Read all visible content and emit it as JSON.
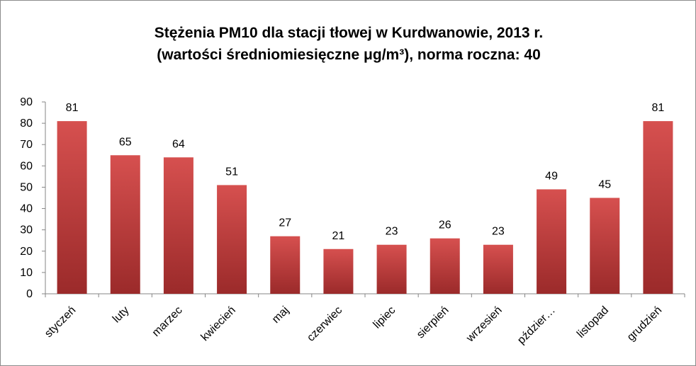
{
  "chart_data": {
    "type": "bar",
    "title_line1": "Stężenia PM10 dla stacji tłowej w Kurdwanowie, 2013 r.",
    "title_line2": "(wartości średniomiesięczne μg/m³), norma roczna: 40",
    "categories": [
      "styczeń",
      "luty",
      "marzec",
      "kwiecień",
      "maj",
      "czerwiec",
      "lipiec",
      "sierpień",
      "wrzesień",
      "pździer…",
      "listopad",
      "grudzień"
    ],
    "values": [
      81,
      65,
      64,
      51,
      27,
      21,
      23,
      26,
      23,
      49,
      45,
      81
    ],
    "ylim": [
      0,
      90
    ],
    "yticks": [
      0,
      10,
      20,
      30,
      40,
      50,
      60,
      70,
      80,
      90
    ],
    "bar_color_top": "#d6504f",
    "bar_color_bottom": "#9b2a2a",
    "grid": false,
    "legend": "none"
  }
}
